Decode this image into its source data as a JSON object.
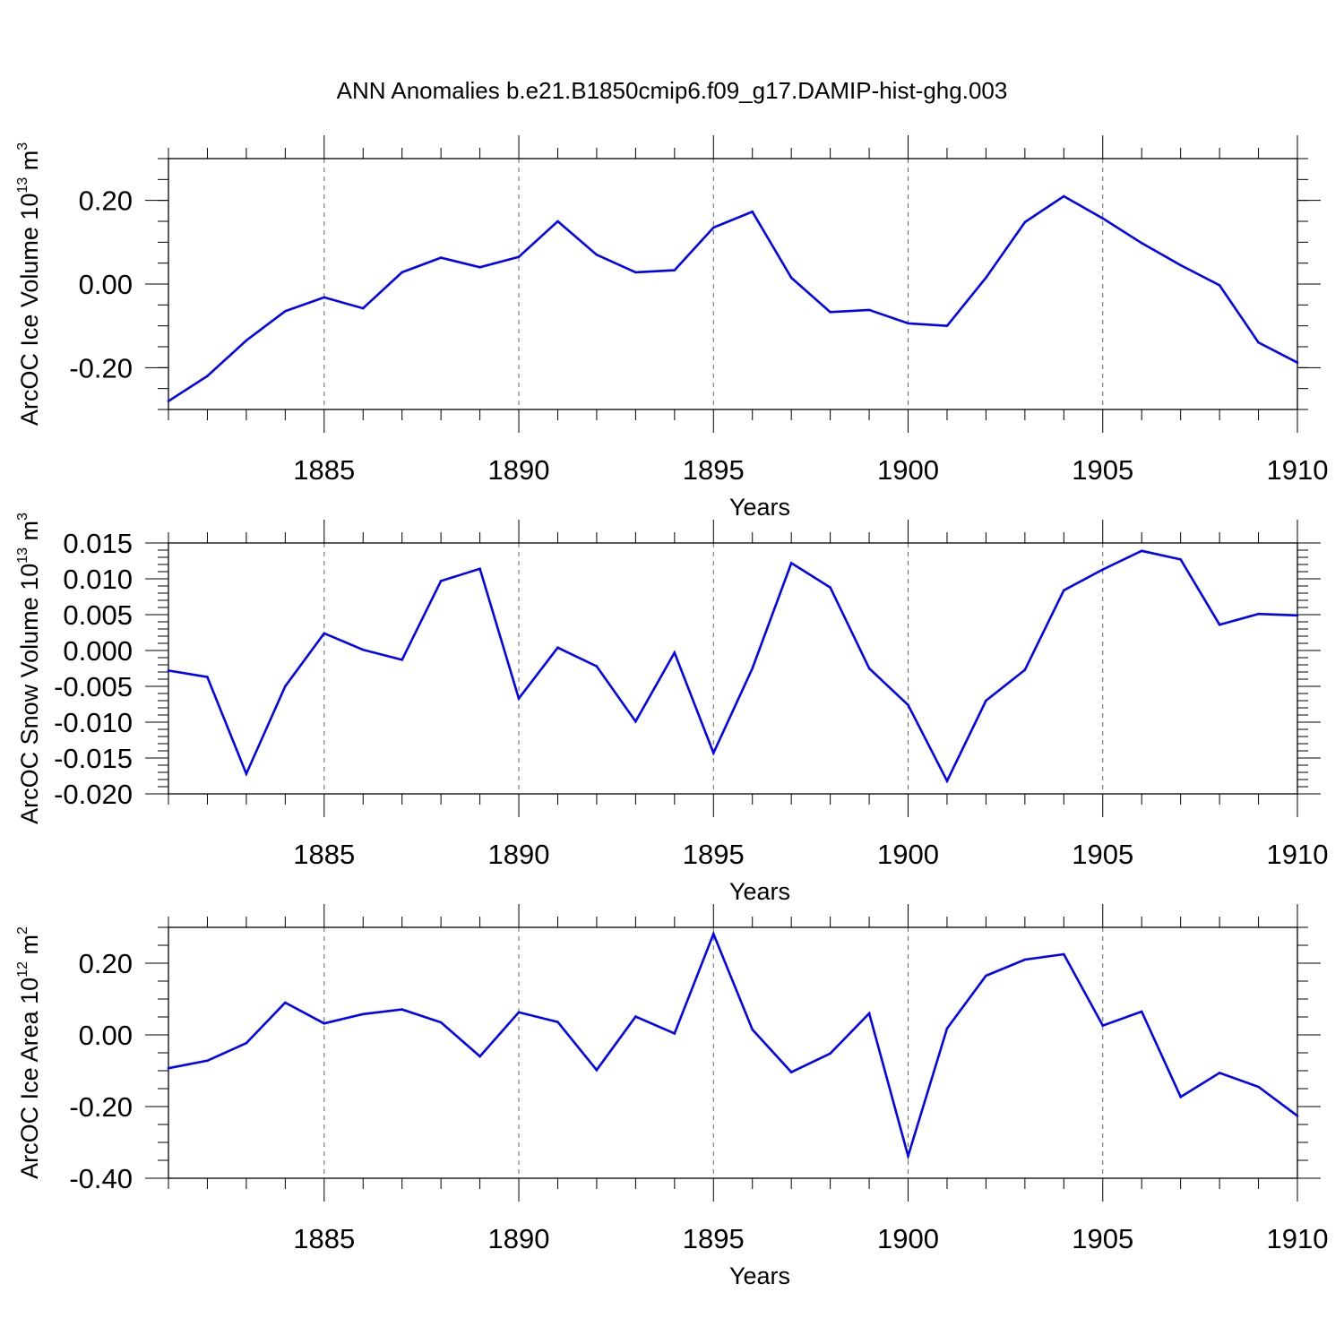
{
  "title": "ANN Anomalies b.e21.B1850cmip6.f09_g17.DAMIP-hist-ghg.003",
  "chart_data": [
    {
      "type": "line",
      "ylabel": {
        "main": "ArcOC Ice Volume 10",
        "exp": "13",
        "unit": " m",
        "unit_exp": "3"
      },
      "xlabel": "Years",
      "xlim": [
        1881,
        1910
      ],
      "ylim": [
        -0.3,
        0.3
      ],
      "yticks": [
        -0.2,
        0.0,
        0.2
      ],
      "ytick_labels": [
        "-0.20",
        "0.00",
        "0.20"
      ],
      "xticks": [
        1885,
        1890,
        1895,
        1900,
        1905,
        1910
      ],
      "xtick_labels": [
        "1885",
        "1890",
        "1895",
        "1900",
        "1905",
        "1910"
      ],
      "line_color": "#0000ff",
      "series": [
        {
          "name": "ice volume",
          "x": [
            1881,
            1882,
            1883,
            1884,
            1885,
            1886,
            1887,
            1888,
            1889,
            1890,
            1891,
            1892,
            1893,
            1894,
            1895,
            1896,
            1897,
            1898,
            1899,
            1900,
            1901,
            1902,
            1903,
            1904,
            1905,
            1906,
            1907,
            1908,
            1909,
            1910
          ],
          "values": [
            -0.28,
            -0.22,
            -0.135,
            -0.065,
            -0.032,
            -0.058,
            0.028,
            0.063,
            0.04,
            0.065,
            0.15,
            0.07,
            0.028,
            0.033,
            0.135,
            0.173,
            0.015,
            -0.067,
            -0.062,
            -0.094,
            -0.1,
            0.015,
            0.148,
            0.21,
            0.157,
            0.098,
            0.045,
            -0.003,
            -0.14,
            -0.188
          ]
        }
      ]
    },
    {
      "type": "line",
      "ylabel": {
        "main": "ArcOC Snow Volume 10",
        "exp": "13",
        "unit": " m",
        "unit_exp": "3"
      },
      "xlabel": "Years",
      "xlim": [
        1881,
        1910
      ],
      "ylim": [
        -0.02,
        0.015
      ],
      "yticks": [
        -0.02,
        -0.015,
        -0.01,
        -0.005,
        0.0,
        0.005,
        0.01,
        0.015
      ],
      "ytick_labels": [
        "-0.020",
        "-0.015",
        "-0.010",
        "-0.005",
        "0.000",
        "0.005",
        "0.010",
        "0.015"
      ],
      "xticks": [
        1885,
        1890,
        1895,
        1900,
        1905,
        1910
      ],
      "xtick_labels": [
        "1885",
        "1890",
        "1895",
        "1900",
        "1905",
        "1910"
      ],
      "line_color": "#0000ff",
      "series": [
        {
          "name": "snow volume",
          "x": [
            1881,
            1882,
            1883,
            1884,
            1885,
            1886,
            1887,
            1888,
            1889,
            1890,
            1891,
            1892,
            1893,
            1894,
            1895,
            1896,
            1897,
            1898,
            1899,
            1900,
            1901,
            1902,
            1903,
            1904,
            1905,
            1906,
            1907,
            1908,
            1909,
            1910
          ],
          "values": [
            -0.0028,
            -0.0037,
            -0.0172,
            -0.005,
            0.0024,
            0.0001,
            -0.0013,
            0.0097,
            0.0114,
            -0.0067,
            0.0004,
            -0.0022,
            -0.0099,
            -0.0003,
            -0.0143,
            -0.0025,
            0.0122,
            0.0088,
            -0.0025,
            -0.0076,
            -0.0182,
            -0.007,
            -0.0027,
            0.0084,
            0.0113,
            0.0139,
            0.0127,
            0.0036,
            0.0051,
            0.0049
          ]
        }
      ]
    },
    {
      "type": "line",
      "ylabel": {
        "main": "ArcOC Ice Area 10",
        "exp": "12",
        "unit": " m",
        "unit_exp": "2"
      },
      "xlabel": "Years",
      "xlim": [
        1881,
        1910
      ],
      "ylim": [
        -0.4,
        0.3
      ],
      "yticks": [
        -0.4,
        -0.2,
        0.0,
        0.2
      ],
      "ytick_labels": [
        "-0.40",
        "-0.20",
        "0.00",
        "0.20"
      ],
      "xticks": [
        1885,
        1890,
        1895,
        1900,
        1905,
        1910
      ],
      "xtick_labels": [
        "1885",
        "1890",
        "1895",
        "1900",
        "1905",
        "1910"
      ],
      "line_color": "#0000ff",
      "series": [
        {
          "name": "ice area",
          "x": [
            1881,
            1882,
            1883,
            1884,
            1885,
            1886,
            1887,
            1888,
            1889,
            1890,
            1891,
            1892,
            1893,
            1894,
            1895,
            1896,
            1897,
            1898,
            1899,
            1900,
            1901,
            1902,
            1903,
            1904,
            1905,
            1906,
            1907,
            1908,
            1909,
            1910
          ],
          "values": [
            -0.093,
            -0.072,
            -0.023,
            0.09,
            0.032,
            0.058,
            0.071,
            0.035,
            -0.06,
            0.063,
            0.036,
            -0.098,
            0.051,
            0.004,
            0.282,
            0.015,
            -0.104,
            -0.052,
            0.06,
            -0.338,
            0.018,
            0.165,
            0.21,
            0.225,
            0.026,
            0.065,
            -0.173,
            -0.106,
            -0.145,
            -0.226
          ]
        }
      ]
    }
  ]
}
